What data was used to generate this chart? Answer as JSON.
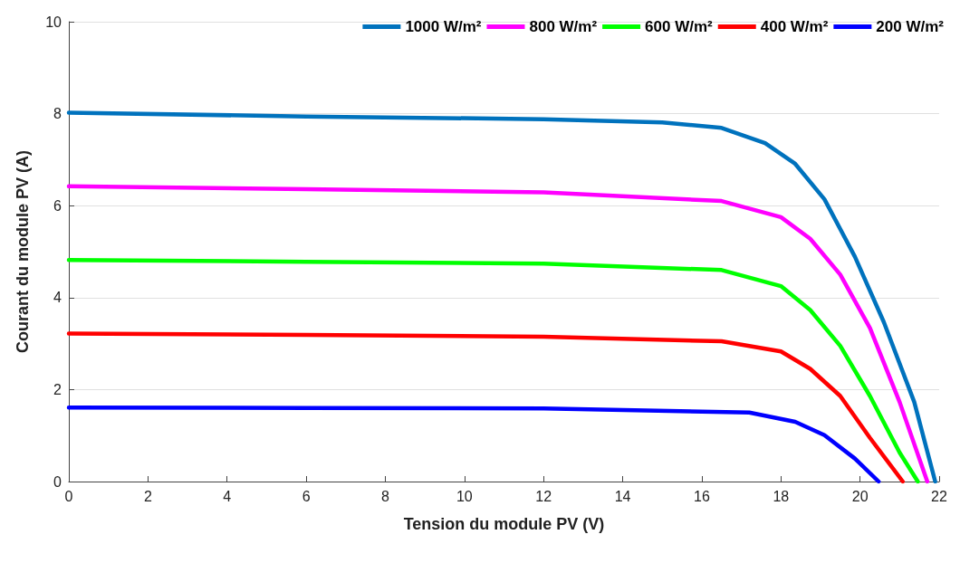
{
  "chart_data": {
    "type": "line",
    "xlabel": "Tension du module PV (V)",
    "ylabel": "Courant du module PV (A)",
    "xlim": [
      0,
      22
    ],
    "xticks": [
      0,
      2,
      4,
      6,
      8,
      10,
      12,
      14,
      16,
      18,
      20,
      22
    ],
    "ylim": [
      0,
      10
    ],
    "yticks": [
      0,
      2,
      4,
      6,
      8,
      10
    ],
    "grid": "y",
    "legend": "top right",
    "marker": "none",
    "line_style": "solid",
    "series": [
      {
        "name": "1000 W/m²",
        "color": "#0072bd",
        "x": [
          0,
          6,
          12,
          15,
          16.5,
          17.6,
          18.36,
          19.1,
          19.87,
          20.6,
          21.37,
          21.9
        ],
        "values": [
          8.02,
          7.94,
          7.88,
          7.81,
          7.69,
          7.36,
          6.91,
          6.14,
          4.89,
          3.47,
          1.73,
          0
        ]
      },
      {
        "name": "800 W/m²",
        "color": "#ff00ff",
        "x": [
          0,
          6,
          12,
          16.5,
          18.0,
          18.74,
          19.5,
          20.25,
          21.0,
          21.7
        ],
        "values": [
          6.42,
          6.36,
          6.29,
          6.1,
          5.75,
          5.28,
          4.5,
          3.34,
          1.73,
          0
        ]
      },
      {
        "name": "600 W/m²",
        "color": "#00ff00",
        "x": [
          0,
          6,
          12,
          16.5,
          18.0,
          18.74,
          19.5,
          20.25,
          21.0,
          21.46
        ],
        "values": [
          4.82,
          4.78,
          4.74,
          4.6,
          4.25,
          3.73,
          2.95,
          1.86,
          0.63,
          0
        ]
      },
      {
        "name": "400 W/m²",
        "color": "#ff0000",
        "x": [
          0,
          6,
          12,
          16.5,
          18.0,
          18.74,
          19.5,
          20.25,
          21.08
        ],
        "values": [
          3.22,
          3.19,
          3.15,
          3.05,
          2.83,
          2.45,
          1.86,
          0.95,
          0
        ]
      },
      {
        "name": "200 W/m²",
        "color": "#0000ff",
        "x": [
          0,
          6,
          12,
          17.2,
          18.36,
          19.1,
          19.87,
          20.47
        ],
        "values": [
          1.61,
          1.6,
          1.59,
          1.5,
          1.3,
          1.01,
          0.5,
          0
        ]
      }
    ]
  }
}
